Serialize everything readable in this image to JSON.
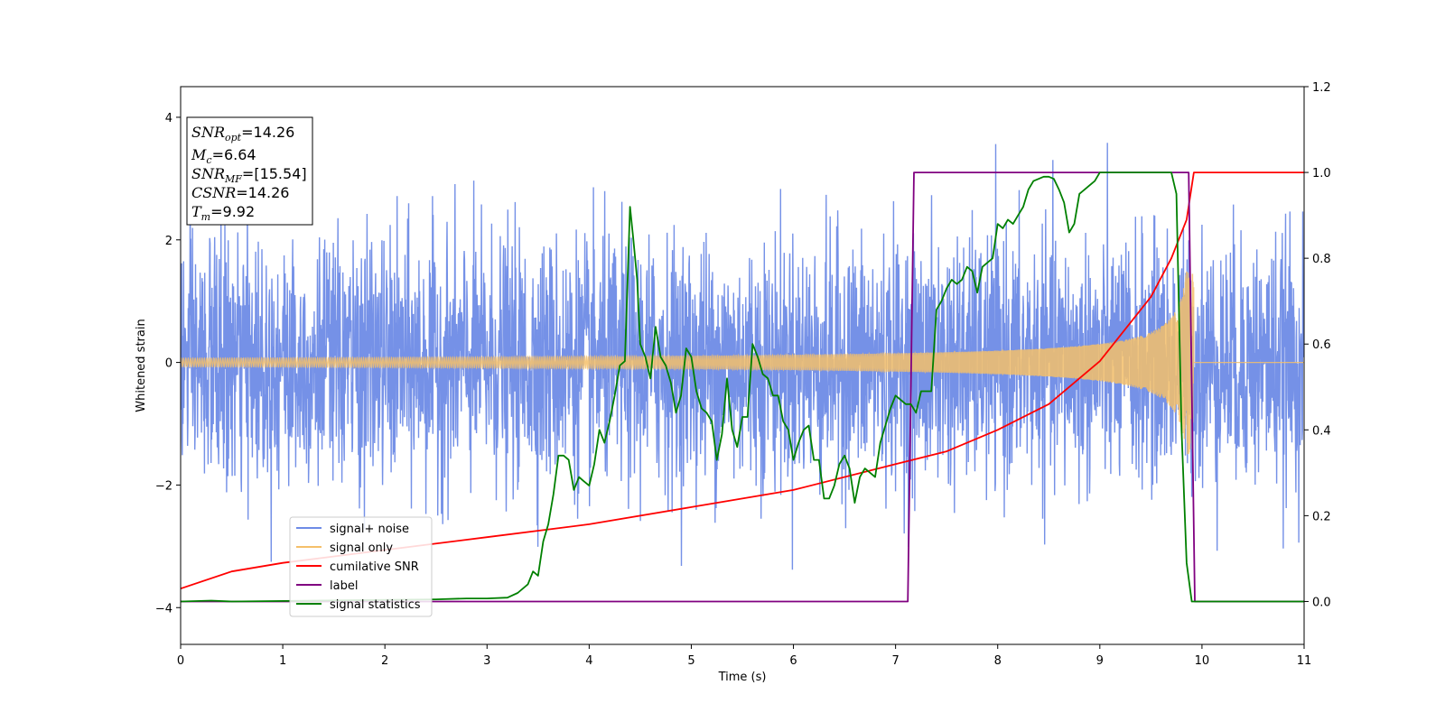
{
  "chart_data": {
    "type": "line",
    "xlabel": "Time (s)",
    "ylabel": "Whitened strain",
    "xlim": [
      0,
      11
    ],
    "ylim_left": [
      -4.6,
      4.5
    ],
    "ylim_right": [
      -0.1,
      1.2
    ],
    "x_ticks": [
      0,
      1,
      2,
      3,
      4,
      5,
      6,
      7,
      8,
      9,
      10,
      11
    ],
    "y_ticks_left": [
      -4,
      -2,
      0,
      2,
      4
    ],
    "y_ticks_right": [
      0.0,
      0.2,
      0.4,
      0.6,
      0.8,
      1.0,
      1.2
    ],
    "legend_position": "lower-left",
    "grid": false,
    "series": [
      {
        "name": "signal+ noise",
        "color": "#6e8be6",
        "axis": "left",
        "kind": "noise",
        "std": 1.0,
        "x_range": [
          0,
          11
        ]
      },
      {
        "name": "signal only",
        "color": "#f5c06a",
        "axis": "left",
        "kind": "chirp",
        "start_amplitude": 0.07,
        "peak_amplitude": 1.5,
        "merger_time": 9.92,
        "end_time": 11
      },
      {
        "name": "cumilative SNR",
        "color": "#ff0000",
        "axis": "right",
        "x": [
          0,
          0.5,
          1,
          2,
          3,
          4,
          5,
          6,
          7,
          7.5,
          8,
          8.5,
          9,
          9.5,
          9.7,
          9.85,
          9.92,
          11
        ],
        "y": [
          0.03,
          0.07,
          0.09,
          0.12,
          0.15,
          0.18,
          0.22,
          0.26,
          0.32,
          0.35,
          0.4,
          0.46,
          0.56,
          0.71,
          0.8,
          0.89,
          1.0,
          1.0
        ]
      },
      {
        "name": "label",
        "color": "#800080",
        "axis": "right",
        "x": [
          0,
          7.12,
          7.18,
          9.87,
          9.93,
          11
        ],
        "y": [
          0,
          0,
          1,
          1,
          0,
          0
        ]
      },
      {
        "name": "signal statistics",
        "color": "#008000",
        "axis": "right",
        "x": [
          0,
          0.3,
          0.5,
          2.5,
          2.8,
          3.0,
          3.2,
          3.3,
          3.4,
          3.45,
          3.5,
          3.55,
          3.6,
          3.65,
          3.7,
          3.75,
          3.8,
          3.85,
          3.9,
          3.95,
          4.0,
          4.05,
          4.1,
          4.15,
          4.2,
          4.25,
          4.3,
          4.35,
          4.4,
          4.43,
          4.47,
          4.5,
          4.55,
          4.6,
          4.65,
          4.7,
          4.75,
          4.8,
          4.85,
          4.9,
          4.95,
          5.0,
          5.05,
          5.1,
          5.15,
          5.2,
          5.25,
          5.3,
          5.35,
          5.4,
          5.45,
          5.5,
          5.55,
          5.6,
          5.65,
          5.7,
          5.75,
          5.8,
          5.85,
          5.9,
          5.95,
          6.0,
          6.05,
          6.1,
          6.15,
          6.2,
          6.25,
          6.3,
          6.35,
          6.4,
          6.45,
          6.5,
          6.55,
          6.6,
          6.65,
          6.7,
          6.75,
          6.8,
          6.85,
          6.9,
          6.95,
          7.0,
          7.05,
          7.1,
          7.15,
          7.2,
          7.25,
          7.3,
          7.35,
          7.4,
          7.45,
          7.5,
          7.55,
          7.6,
          7.65,
          7.7,
          7.75,
          7.8,
          7.85,
          7.9,
          7.95,
          8.0,
          8.05,
          8.1,
          8.15,
          8.2,
          8.25,
          8.3,
          8.35,
          8.4,
          8.45,
          8.5,
          8.55,
          8.6,
          8.65,
          8.7,
          8.75,
          8.8,
          8.85,
          8.9,
          8.95,
          9.0,
          9.05,
          9.1,
          9.2,
          9.3,
          9.4,
          9.5,
          9.6,
          9.7,
          9.75,
          9.8,
          9.85,
          9.9,
          9.95,
          10.0,
          11
        ],
        "y": [
          0.0,
          0.002,
          0.0,
          0.005,
          0.007,
          0.007,
          0.009,
          0.02,
          0.04,
          0.07,
          0.06,
          0.14,
          0.18,
          0.25,
          0.34,
          0.34,
          0.33,
          0.26,
          0.29,
          0.28,
          0.27,
          0.32,
          0.4,
          0.37,
          0.42,
          0.48,
          0.55,
          0.56,
          0.92,
          0.85,
          0.75,
          0.6,
          0.57,
          0.52,
          0.64,
          0.57,
          0.55,
          0.51,
          0.44,
          0.48,
          0.59,
          0.57,
          0.49,
          0.45,
          0.44,
          0.42,
          0.33,
          0.39,
          0.52,
          0.4,
          0.36,
          0.43,
          0.43,
          0.6,
          0.57,
          0.53,
          0.52,
          0.48,
          0.48,
          0.42,
          0.4,
          0.33,
          0.37,
          0.4,
          0.41,
          0.33,
          0.33,
          0.24,
          0.24,
          0.27,
          0.32,
          0.34,
          0.31,
          0.23,
          0.29,
          0.31,
          0.3,
          0.29,
          0.37,
          0.41,
          0.45,
          0.48,
          0.47,
          0.46,
          0.46,
          0.44,
          0.49,
          0.49,
          0.49,
          0.68,
          0.7,
          0.73,
          0.75,
          0.74,
          0.75,
          0.78,
          0.77,
          0.72,
          0.78,
          0.79,
          0.8,
          0.88,
          0.87,
          0.89,
          0.88,
          0.9,
          0.92,
          0.96,
          0.98,
          0.985,
          0.99,
          0.99,
          0.985,
          0.96,
          0.93,
          0.86,
          0.88,
          0.95,
          0.96,
          0.97,
          0.98,
          1.0,
          1.0,
          1.0,
          1.0,
          1.0,
          1.0,
          1.0,
          1.0,
          1.0,
          0.95,
          0.4,
          0.09,
          0.0,
          0.0,
          0.0,
          0.0
        ]
      }
    ],
    "annotation": {
      "lines": [
        {
          "symbol": "SNR",
          "sub": "opt",
          "value": "=14.26"
        },
        {
          "symbol": "M",
          "sub": "c",
          "value": "=6.64"
        },
        {
          "symbol": "SNR",
          "sub": "MF",
          "value": "=[15.54]"
        },
        {
          "symbol": "CSNR",
          "sub": "",
          "value": "=14.26"
        },
        {
          "symbol": "T",
          "sub": "m",
          "value": "=9.92"
        }
      ]
    }
  }
}
